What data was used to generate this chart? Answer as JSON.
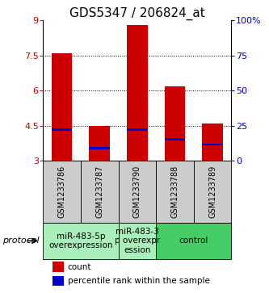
{
  "title": "GDS5347 / 206824_at",
  "samples": [
    "GSM1233786",
    "GSM1233787",
    "GSM1233790",
    "GSM1233788",
    "GSM1233789"
  ],
  "bar_tops": [
    7.6,
    4.5,
    8.8,
    6.2,
    4.6
  ],
  "bar_bottoms": [
    3.0,
    3.0,
    3.0,
    3.0,
    3.0
  ],
  "blue_markers": [
    4.35,
    3.55,
    4.35,
    3.92,
    3.7
  ],
  "ylim_left": [
    3.0,
    9.0
  ],
  "ylim_right": [
    0,
    100
  ],
  "yticks_left": [
    3,
    4.5,
    6,
    7.5,
    9
  ],
  "yticks_right": [
    0,
    25,
    50,
    75,
    100
  ],
  "ytick_labels_left": [
    "3",
    "4.5",
    "6",
    "7.5",
    "9"
  ],
  "ytick_labels_right": [
    "0",
    "25",
    "50",
    "75",
    "100%"
  ],
  "gridlines": [
    4.5,
    6.0,
    7.5
  ],
  "bar_color": "#cc0000",
  "blue_color": "#0000cc",
  "bar_width": 0.55,
  "groups": [
    {
      "label": "miR-483-5p\noverexpression",
      "samples": [
        0,
        1
      ],
      "color": "#aaeebb"
    },
    {
      "label": "miR-483-3\np overexpr\nession",
      "samples": [
        2
      ],
      "color": "#aaeebb"
    },
    {
      "label": "control",
      "samples": [
        3,
        4
      ],
      "color": "#44cc66"
    }
  ],
  "sample_box_color": "#cccccc",
  "protocol_label": "protocol",
  "legend_count_label": "count",
  "legend_pct_label": "percentile rank within the sample",
  "title_fontsize": 11,
  "tick_fontsize": 8,
  "sample_fontsize": 7,
  "group_fontsize": 7.5,
  "legend_fontsize": 7.5
}
